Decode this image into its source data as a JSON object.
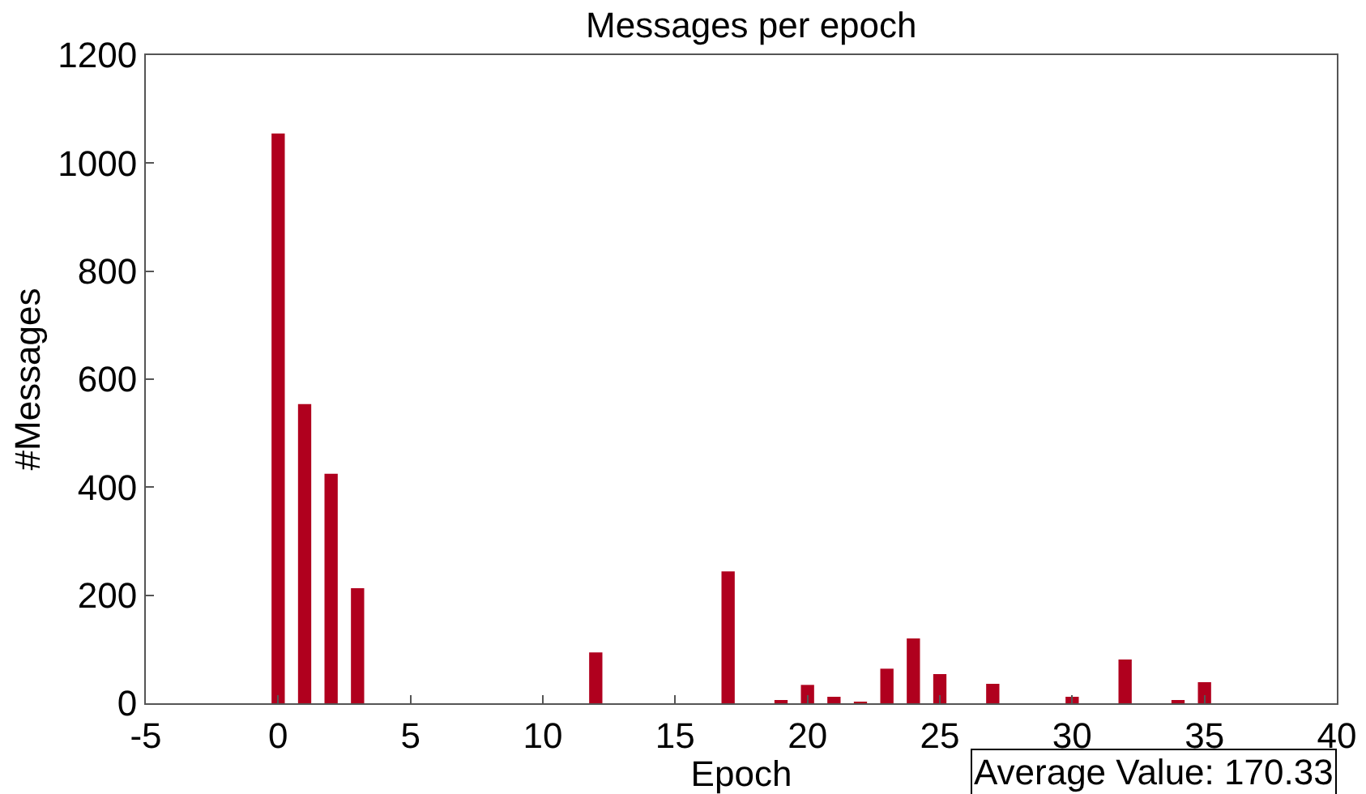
{
  "chart_data": {
    "type": "bar",
    "title": "Messages per epoch",
    "xlabel": "Epoch",
    "ylabel": "#Messages",
    "x": [
      0,
      1,
      2,
      3,
      12,
      17,
      19,
      20,
      21,
      22,
      23,
      24,
      25,
      27,
      30,
      32,
      34,
      35
    ],
    "values": [
      1055,
      554,
      425,
      213,
      94,
      244,
      6,
      34,
      12,
      3,
      64,
      120,
      54,
      36,
      12,
      81,
      6,
      39
    ],
    "color": "#b0001e",
    "xlim": [
      -5,
      40
    ],
    "xticks": [
      -5,
      0,
      5,
      10,
      15,
      20,
      25,
      30,
      35,
      40
    ],
    "ylim": [
      0,
      1200
    ],
    "yticks": [
      0,
      200,
      400,
      600,
      800,
      1000,
      1200
    ],
    "grid": false,
    "annotations": [
      "Average Value: 170.33"
    ]
  }
}
